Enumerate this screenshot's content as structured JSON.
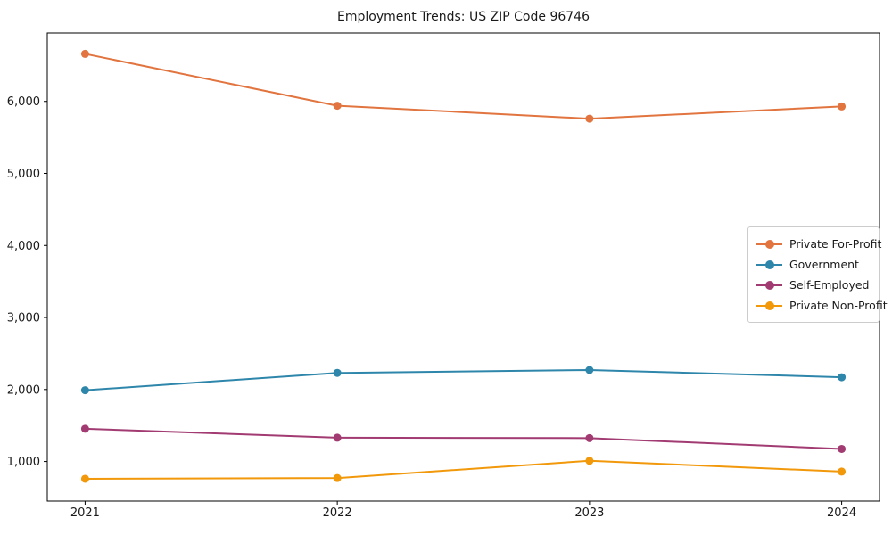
{
  "chart_data": {
    "type": "line",
    "title": "Employment Trends: US ZIP Code 96746",
    "categories": [
      2021,
      2022,
      2023,
      2024
    ],
    "series": [
      {
        "name": "Private For-Profit",
        "color": "#E1743F",
        "values": [
          6660,
          5940,
          5760,
          5930
        ]
      },
      {
        "name": "Government",
        "color": "#2E86AB",
        "values": [
          1990,
          2230,
          2270,
          2170
        ]
      },
      {
        "name": "Self-Employed",
        "color": "#A23B72",
        "values": [
          1455,
          1330,
          1325,
          1175
        ]
      },
      {
        "name": "Private Non-Profit",
        "color": "#F1980B",
        "values": [
          760,
          770,
          1010,
          860
        ]
      }
    ],
    "yticks": [
      {
        "value": 1000,
        "label": "1,000"
      },
      {
        "value": 2000,
        "label": "2,000"
      },
      {
        "value": 3000,
        "label": "3,000"
      },
      {
        "value": 4000,
        "label": "4,000"
      },
      {
        "value": 5000,
        "label": "5,000"
      },
      {
        "value": 6000,
        "label": "6,000"
      }
    ],
    "xtick_labels": [
      "2021",
      "2022",
      "2023",
      "2024"
    ],
    "xlim": [
      2020.85,
      2024.15
    ],
    "ylim": [
      450,
      6950
    ],
    "grid": false,
    "legend_position": "right-middle",
    "axis_color": "#000000",
    "tick_label_color": "#1a1a1a"
  }
}
